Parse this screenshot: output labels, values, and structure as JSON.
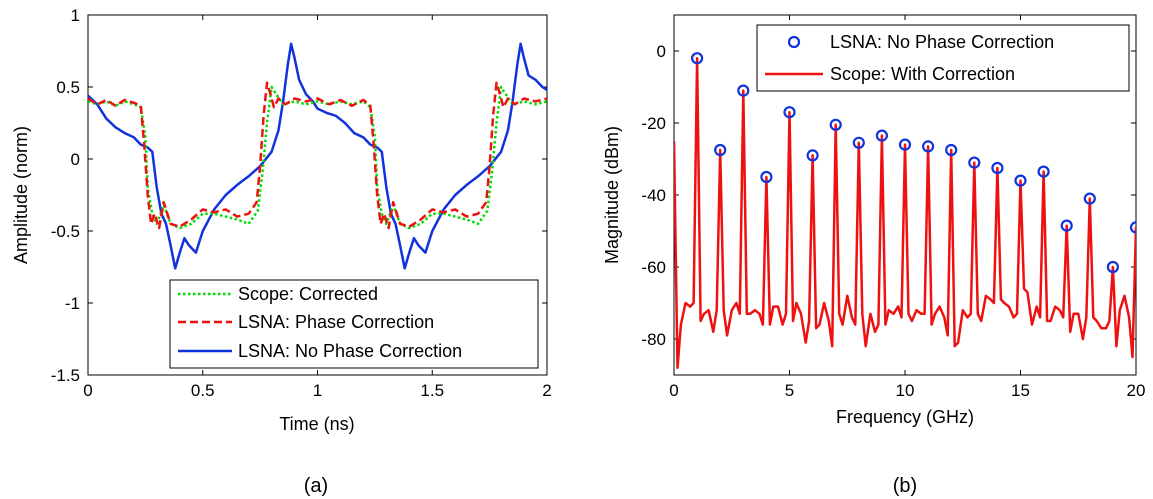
{
  "chart_data": [
    {
      "type": "line",
      "caption": "(a)",
      "xlabel": "Time (ns)",
      "ylabel": "Amplitude (norm)",
      "xlim": [
        0,
        2
      ],
      "ylim": [
        -1.5,
        1
      ],
      "xticks": [
        0,
        0.5,
        1,
        1.5,
        2
      ],
      "xtick_labels": [
        "0",
        "0.5",
        "1",
        "1.5",
        "2"
      ],
      "yticks": [
        -1.5,
        -1,
        -0.5,
        0,
        0.5,
        1
      ],
      "ytick_labels": [
        "-1.5",
        "-1",
        "-0.5",
        "0",
        "0.5",
        "1"
      ],
      "grid": false,
      "legend_position": "bottom-right",
      "series": [
        {
          "name": "Scope: Corrected",
          "color": "#00dd00",
          "style": "dotted",
          "x": [
            0,
            0.04,
            0.08,
            0.12,
            0.16,
            0.2,
            0.23,
            0.25,
            0.26,
            0.28,
            0.3,
            0.33,
            0.36,
            0.4,
            0.45,
            0.5,
            0.55,
            0.6,
            0.65,
            0.7,
            0.74,
            0.76,
            0.78,
            0.8,
            0.82,
            0.85,
            0.9,
            0.95,
            1.0,
            1.05,
            1.1,
            1.15,
            1.2,
            1.23,
            1.25,
            1.26,
            1.28,
            1.3,
            1.33,
            1.36,
            1.4,
            1.45,
            1.5,
            1.55,
            1.6,
            1.65,
            1.7,
            1.74,
            1.76,
            1.78,
            1.8,
            1.82,
            1.85,
            1.9,
            1.95,
            2.0
          ],
          "y": [
            0.4,
            0.38,
            0.4,
            0.37,
            0.4,
            0.38,
            0.36,
            0.15,
            -0.2,
            -0.38,
            -0.45,
            -0.32,
            -0.45,
            -0.48,
            -0.45,
            -0.38,
            -0.38,
            -0.4,
            -0.42,
            -0.45,
            -0.36,
            -0.1,
            0.25,
            0.5,
            0.45,
            0.38,
            0.4,
            0.38,
            0.4,
            0.38,
            0.4,
            0.38,
            0.4,
            0.36,
            0.15,
            -0.2,
            -0.38,
            -0.45,
            -0.32,
            -0.45,
            -0.48,
            -0.45,
            -0.38,
            -0.38,
            -0.4,
            -0.42,
            -0.45,
            -0.36,
            -0.1,
            0.25,
            0.5,
            0.45,
            0.38,
            0.4,
            0.38,
            0.4
          ]
        },
        {
          "name": "LSNA: Phase Correction",
          "color": "#ee1111",
          "style": "dashed",
          "x": [
            0,
            0.04,
            0.08,
            0.12,
            0.16,
            0.2,
            0.23,
            0.245,
            0.26,
            0.275,
            0.29,
            0.31,
            0.33,
            0.36,
            0.4,
            0.45,
            0.5,
            0.55,
            0.6,
            0.65,
            0.7,
            0.735,
            0.75,
            0.765,
            0.78,
            0.795,
            0.81,
            0.83,
            0.86,
            0.9,
            0.95,
            1.0,
            1.05,
            1.1,
            1.15,
            1.2,
            1.23,
            1.245,
            1.26,
            1.275,
            1.29,
            1.31,
            1.33,
            1.36,
            1.4,
            1.45,
            1.5,
            1.55,
            1.6,
            1.65,
            1.7,
            1.735,
            1.75,
            1.765,
            1.78,
            1.795,
            1.81,
            1.83,
            1.86,
            1.9,
            1.95,
            2.0
          ],
          "y": [
            0.42,
            0.38,
            0.41,
            0.37,
            0.41,
            0.39,
            0.37,
            0.1,
            -0.25,
            -0.45,
            -0.38,
            -0.48,
            -0.3,
            -0.45,
            -0.47,
            -0.42,
            -0.35,
            -0.37,
            -0.35,
            -0.4,
            -0.38,
            -0.3,
            -0.05,
            0.3,
            0.53,
            0.45,
            0.36,
            0.42,
            0.38,
            0.42,
            0.4,
            0.42,
            0.38,
            0.41,
            0.37,
            0.41,
            0.37,
            0.1,
            -0.25,
            -0.45,
            -0.38,
            -0.48,
            -0.3,
            -0.45,
            -0.47,
            -0.42,
            -0.35,
            -0.37,
            -0.35,
            -0.4,
            -0.38,
            -0.3,
            -0.05,
            0.3,
            0.53,
            0.45,
            0.36,
            0.42,
            0.38,
            0.42,
            0.4,
            0.42
          ]
        },
        {
          "name": "LSNA: No Phase Correction",
          "color": "#1133dd",
          "style": "solid",
          "x": [
            0,
            0.04,
            0.08,
            0.12,
            0.16,
            0.2,
            0.23,
            0.26,
            0.28,
            0.3,
            0.32,
            0.34,
            0.36,
            0.38,
            0.4,
            0.42,
            0.44,
            0.47,
            0.5,
            0.55,
            0.6,
            0.65,
            0.7,
            0.75,
            0.8,
            0.83,
            0.85,
            0.87,
            0.885,
            0.9,
            0.92,
            0.95,
            0.98,
            1.0,
            1.04,
            1.08,
            1.12,
            1.16,
            1.2,
            1.23,
            1.26,
            1.28,
            1.3,
            1.32,
            1.34,
            1.36,
            1.38,
            1.4,
            1.42,
            1.44,
            1.47,
            1.5,
            1.55,
            1.6,
            1.65,
            1.7,
            1.75,
            1.8,
            1.83,
            1.85,
            1.87,
            1.885,
            1.9,
            1.92,
            1.95,
            1.98,
            2.0
          ],
          "y": [
            0.44,
            0.38,
            0.28,
            0.22,
            0.18,
            0.15,
            0.1,
            0.08,
            0.05,
            -0.2,
            -0.38,
            -0.45,
            -0.6,
            -0.76,
            -0.65,
            -0.55,
            -0.6,
            -0.65,
            -0.5,
            -0.35,
            -0.25,
            -0.18,
            -0.12,
            -0.05,
            0.05,
            0.2,
            0.4,
            0.65,
            0.8,
            0.7,
            0.55,
            0.45,
            0.4,
            0.35,
            0.32,
            0.3,
            0.25,
            0.18,
            0.15,
            0.1,
            0.08,
            0.05,
            -0.2,
            -0.38,
            -0.45,
            -0.6,
            -0.76,
            -0.65,
            -0.55,
            -0.6,
            -0.65,
            -0.5,
            -0.35,
            -0.25,
            -0.18,
            -0.12,
            -0.05,
            0.05,
            0.2,
            0.4,
            0.65,
            0.8,
            0.7,
            0.58,
            0.55,
            0.5,
            0.48
          ]
        }
      ]
    },
    {
      "type": "line",
      "caption": "(b)",
      "xlabel": "Frequency (GHz)",
      "ylabel": "Magnitude (dBm)",
      "xlim": [
        0,
        20
      ],
      "ylim": [
        -90,
        10
      ],
      "xticks": [
        0,
        5,
        10,
        15,
        20
      ],
      "xtick_labels": [
        "0",
        "5",
        "10",
        "15",
        "20"
      ],
      "yticks": [
        -80,
        -60,
        -40,
        -20,
        0
      ],
      "ytick_labels": [
        "-80",
        "-60",
        "-40",
        "-20",
        "0"
      ],
      "grid": false,
      "legend_position": "top-right",
      "series": [
        {
          "name": "LSNA: No Phase Correction",
          "color": "#1133dd",
          "style": "circle-markers",
          "x": [
            1,
            2,
            3,
            4,
            5,
            6,
            7,
            8,
            9,
            10,
            11,
            12,
            13,
            14,
            15,
            16,
            17,
            18,
            19,
            20
          ],
          "y": [
            -2,
            -27.5,
            -11,
            -35,
            -17,
            -29,
            -20.5,
            -25.5,
            -23.5,
            -26,
            -26.5,
            -27.5,
            -31,
            -32.5,
            -36,
            -33.5,
            -48.5,
            -41,
            -60,
            -49
          ]
        },
        {
          "name": "Scope: With Correction",
          "color": "#ee1111",
          "style": "solid",
          "x": [
            0,
            0.15,
            0.3,
            0.5,
            0.7,
            0.85,
            1,
            1.15,
            1.3,
            1.5,
            1.7,
            1.85,
            2,
            2.15,
            2.3,
            2.5,
            2.7,
            2.85,
            3,
            3.15,
            3.3,
            3.5,
            3.7,
            3.85,
            4,
            4.15,
            4.3,
            4.5,
            4.7,
            4.85,
            5,
            5.15,
            5.3,
            5.5,
            5.7,
            5.85,
            6,
            6.15,
            6.3,
            6.5,
            6.7,
            6.85,
            7,
            7.15,
            7.3,
            7.5,
            7.7,
            7.85,
            8,
            8.15,
            8.3,
            8.5,
            8.7,
            8.85,
            9,
            9.15,
            9.3,
            9.5,
            9.7,
            9.85,
            10,
            10.15,
            10.3,
            10.5,
            10.7,
            10.85,
            11,
            11.15,
            11.3,
            11.5,
            11.7,
            11.85,
            12,
            12.15,
            12.3,
            12.5,
            12.7,
            12.85,
            13,
            13.15,
            13.3,
            13.5,
            13.7,
            13.85,
            14,
            14.15,
            14.3,
            14.5,
            14.7,
            14.85,
            15,
            15.15,
            15.3,
            15.5,
            15.7,
            15.85,
            16,
            16.15,
            16.3,
            16.5,
            16.7,
            16.85,
            17,
            17.15,
            17.3,
            17.5,
            17.7,
            17.85,
            18,
            18.15,
            18.3,
            18.5,
            18.7,
            18.85,
            19,
            19.15,
            19.3,
            19.5,
            19.7,
            19.85,
            20
          ],
          "y": [
            -25,
            -88,
            -76,
            -70,
            -71,
            -70,
            -2,
            -75,
            -73,
            -72,
            -78,
            -72,
            -27.5,
            -72,
            -79,
            -72,
            -70,
            -73,
            -11,
            -73,
            -73,
            -72,
            -73,
            -76,
            -35,
            -76,
            -71,
            -71,
            -76,
            -73,
            -17,
            -75,
            -70,
            -73,
            -81,
            -75,
            -29,
            -77,
            -76,
            -70,
            -75,
            -82,
            -20.5,
            -73,
            -76,
            -68,
            -74,
            -76,
            -25.5,
            -73,
            -82,
            -73,
            -78,
            -76,
            -23.5,
            -76,
            -72,
            -73,
            -71,
            -74,
            -26,
            -73,
            -75,
            -72,
            -73,
            -73,
            -26.5,
            -76,
            -73,
            -71,
            -74,
            -79,
            -27.5,
            -82,
            -81,
            -72,
            -74,
            -73,
            -31,
            -73,
            -75,
            -68,
            -69,
            -70,
            -32.5,
            -69,
            -70,
            -71,
            -74,
            -73,
            -36,
            -66,
            -67,
            -76,
            -71,
            -74,
            -33.5,
            -75,
            -75,
            -71,
            -72,
            -74,
            -48.5,
            -78,
            -73,
            -73,
            -80,
            -74,
            -41,
            -74,
            -75,
            -77,
            -77,
            -75,
            -60,
            -82,
            -72,
            -68,
            -74,
            -85,
            -49
          ]
        }
      ]
    }
  ]
}
